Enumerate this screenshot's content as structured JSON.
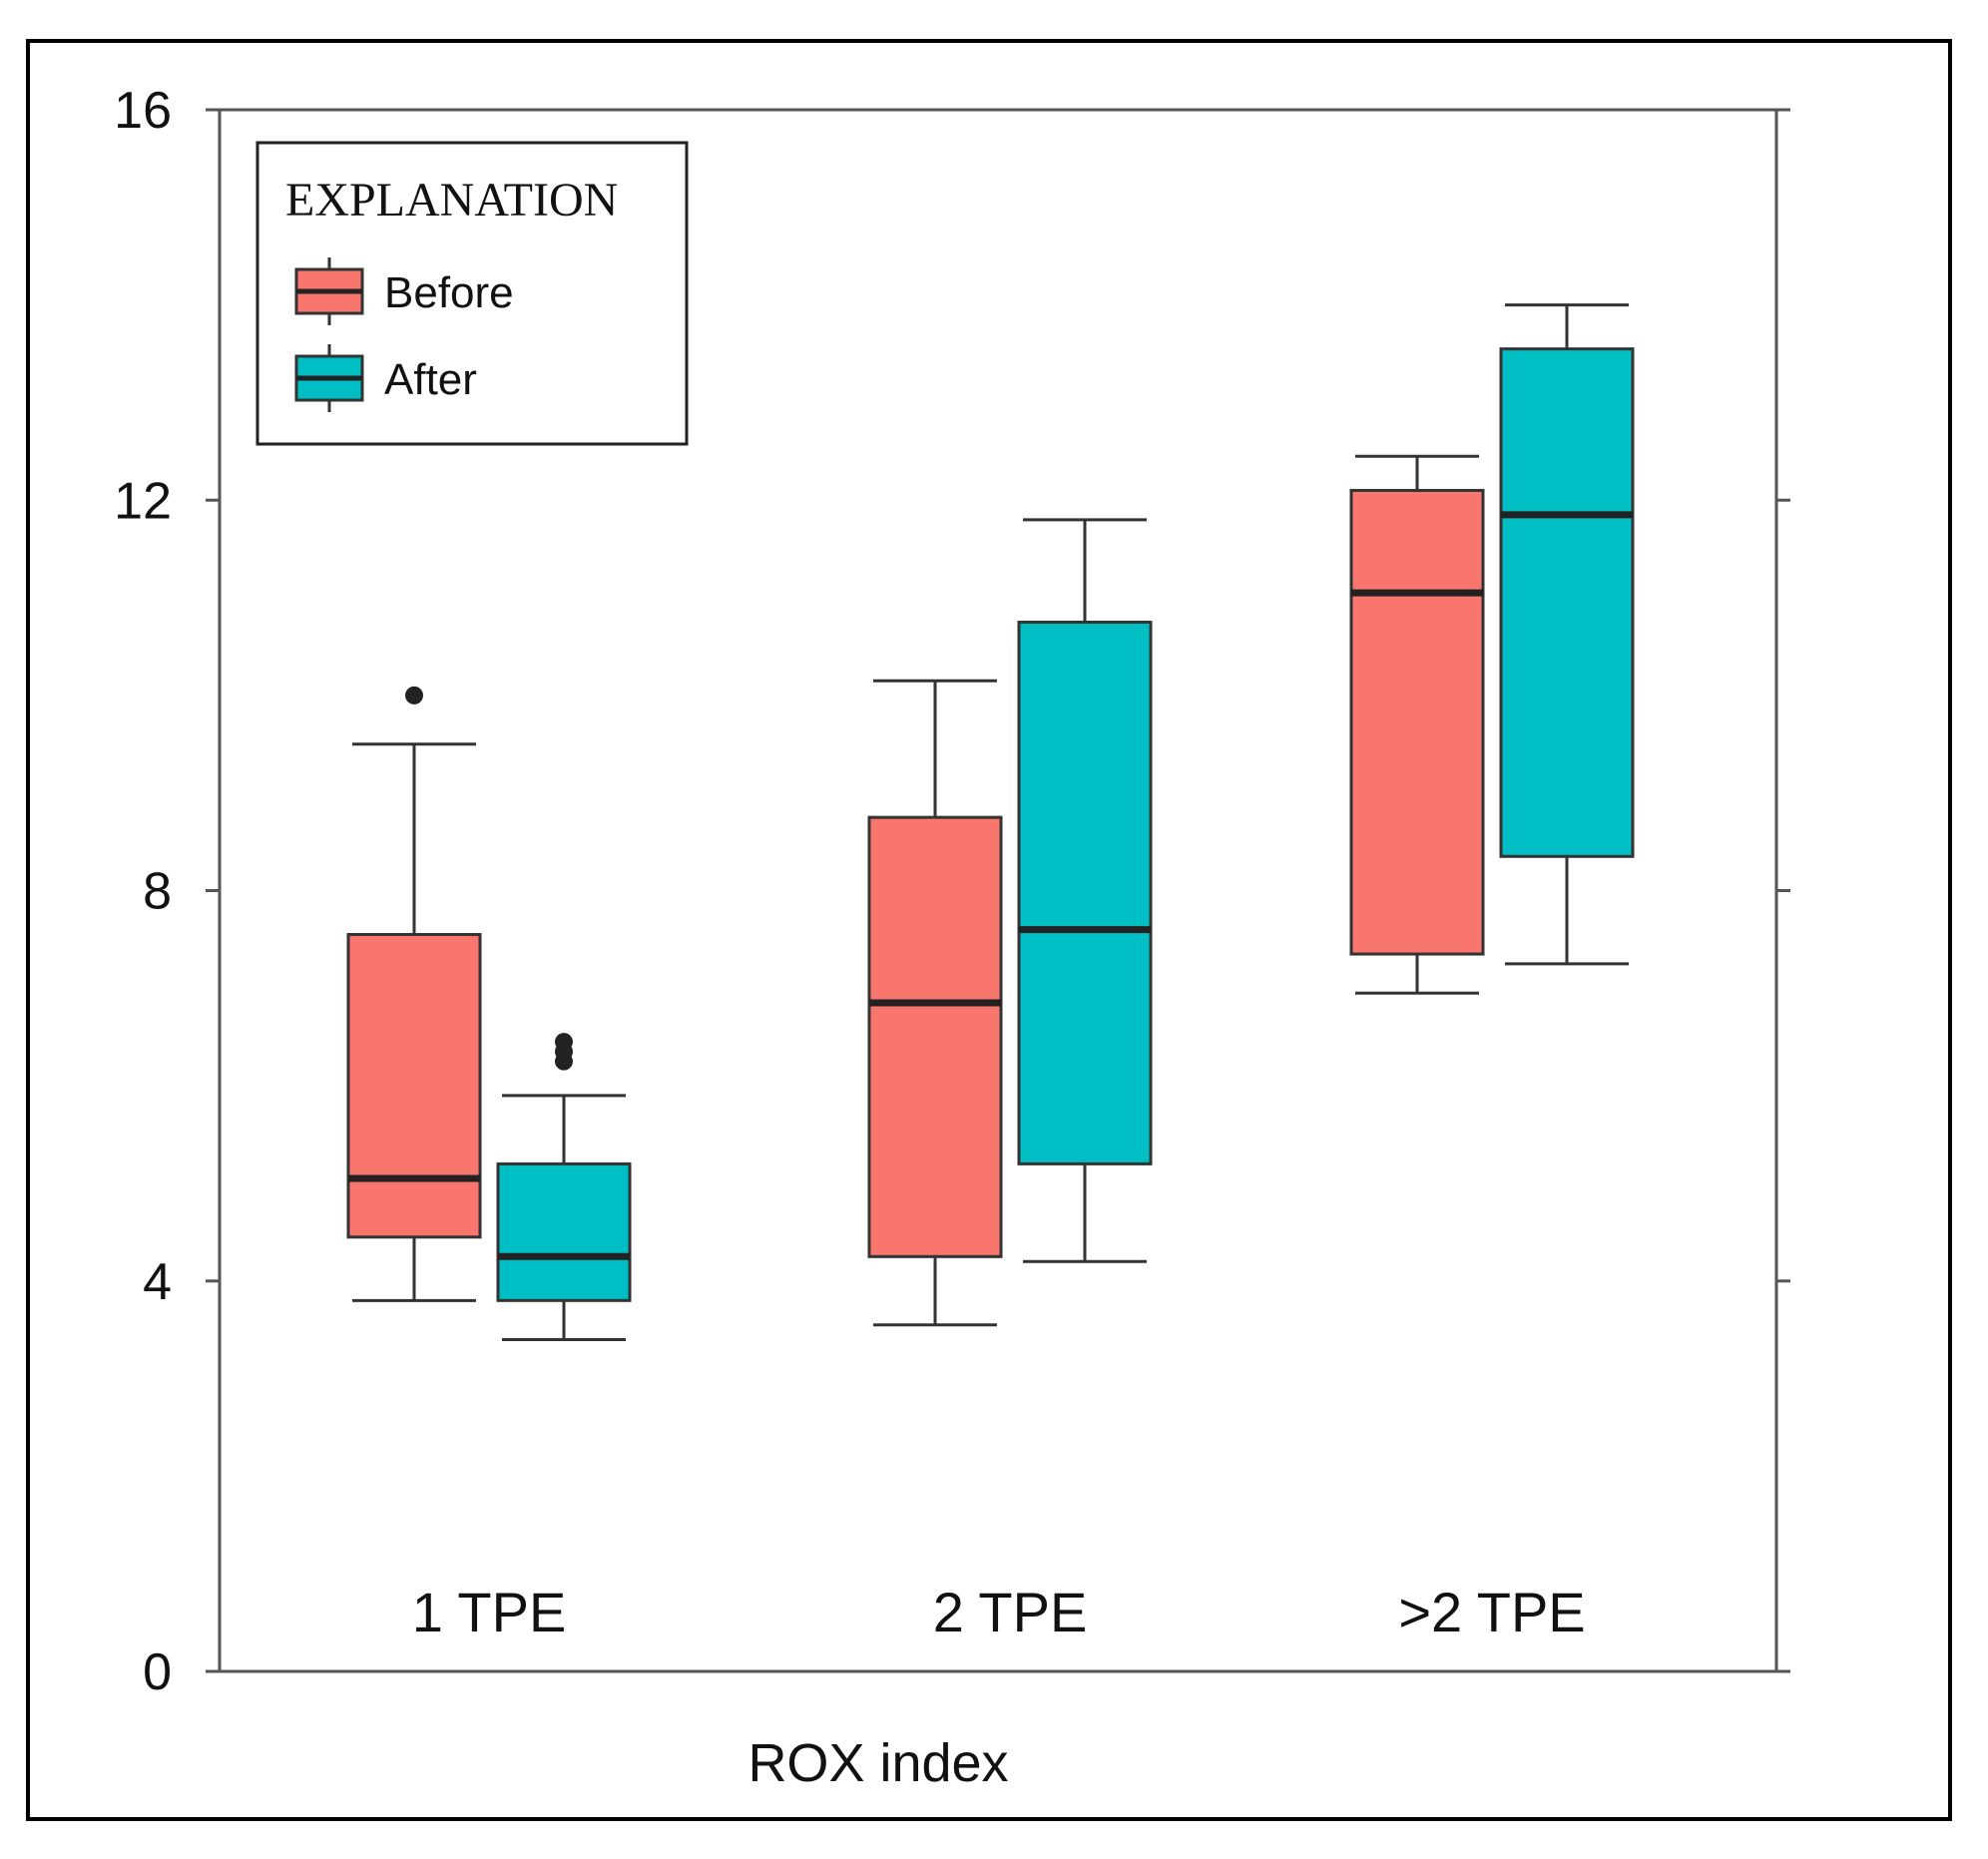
{
  "chart_data": {
    "type": "box",
    "title": "",
    "xlabel": "ROX index",
    "ylabel": "",
    "ylim": [
      0,
      16
    ],
    "yticks": [
      0,
      4,
      8,
      12,
      16
    ],
    "categories": [
      "1 TPE",
      "2 TPE",
      ">2 TPE"
    ],
    "legend": {
      "title": "EXPLANATION",
      "position": "top-left"
    },
    "series": [
      {
        "name": "Before",
        "color": "#F8766D",
        "boxes": [
          {
            "whisker_low": 3.8,
            "q1": 4.45,
            "median": 5.05,
            "q3": 7.55,
            "whisker_high": 9.5,
            "outliers": [
              10.0
            ]
          },
          {
            "whisker_low": 3.55,
            "q1": 4.25,
            "median": 6.85,
            "q3": 8.75,
            "whisker_high": 10.15,
            "outliers": []
          },
          {
            "whisker_low": 6.95,
            "q1": 7.35,
            "median": 11.05,
            "q3": 12.1,
            "whisker_high": 12.45,
            "outliers": []
          }
        ]
      },
      {
        "name": "After",
        "color": "#00BFC4",
        "boxes": [
          {
            "whisker_low": 3.4,
            "q1": 3.8,
            "median": 4.25,
            "q3": 5.2,
            "whisker_high": 5.9,
            "outliers": [
              6.25,
              6.35,
              6.45
            ]
          },
          {
            "whisker_low": 4.2,
            "q1": 5.2,
            "median": 7.6,
            "q3": 10.75,
            "whisker_high": 11.8,
            "outliers": []
          },
          {
            "whisker_low": 7.25,
            "q1": 8.35,
            "median": 11.85,
            "q3": 13.55,
            "whisker_high": 14.0,
            "outliers": []
          }
        ]
      }
    ]
  }
}
